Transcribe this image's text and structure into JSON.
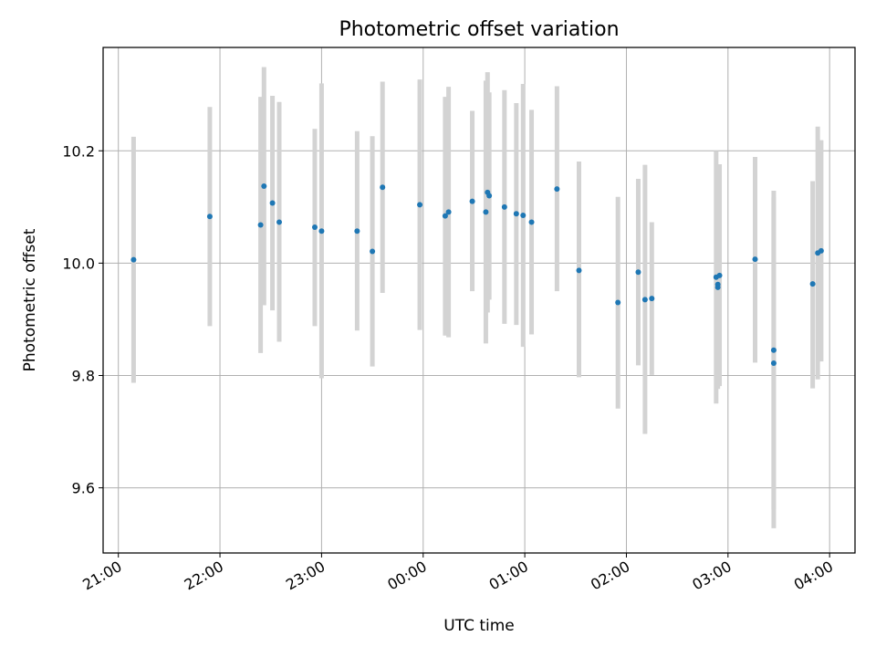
{
  "chart_data": {
    "type": "scatter",
    "title": "Photometric offset variation",
    "xlabel": "UTC time",
    "ylabel": "Photometric offset",
    "grid": true,
    "x_is_time": true,
    "x_start_date": "2000-01-01T20:51",
    "x_end_date": "2000-01-02T04:15",
    "xlim": [
      "20:51",
      "04:15"
    ],
    "ylim": [
      9.484,
      10.384
    ],
    "x_ticks": [
      {
        "label": "21:00",
        "time": "21:00"
      },
      {
        "label": "22:00",
        "time": "22:00"
      },
      {
        "label": "23:00",
        "time": "23:00"
      },
      {
        "label": "00:00",
        "time": "00:00"
      },
      {
        "label": "01:00",
        "time": "01:00"
      },
      {
        "label": "02:00",
        "time": "02:00"
      },
      {
        "label": "03:00",
        "time": "03:00"
      },
      {
        "label": "04:00",
        "time": "04:00"
      }
    ],
    "y_ticks": [
      {
        "label": "9.6",
        "value": 9.6
      },
      {
        "label": "9.8",
        "value": 9.8
      },
      {
        "label": "10.0",
        "value": 10.0
      },
      {
        "label": "10.2",
        "value": 10.2
      }
    ],
    "colors": {
      "marker": "#1f77b4",
      "errorbar": "#d3d3d3",
      "grid": "#b0b0b0"
    },
    "points": [
      {
        "x": "21:09",
        "y": 10.006,
        "lo": 9.787,
        "hi": 10.225
      },
      {
        "x": "21:54",
        "y": 10.083,
        "lo": 9.888,
        "hi": 10.278
      },
      {
        "x": "22:24",
        "y": 10.068,
        "lo": 9.84,
        "hi": 10.296
      },
      {
        "x": "22:26",
        "y": 10.137,
        "lo": 9.925,
        "hi": 10.349
      },
      {
        "x": "22:31",
        "y": 10.107,
        "lo": 9.916,
        "hi": 10.298
      },
      {
        "x": "22:35",
        "y": 10.073,
        "lo": 9.86,
        "hi": 10.287
      },
      {
        "x": "22:56",
        "y": 10.064,
        "lo": 9.888,
        "hi": 10.239
      },
      {
        "x": "23:00",
        "y": 10.057,
        "lo": 9.795,
        "hi": 10.32
      },
      {
        "x": "23:21",
        "y": 10.057,
        "lo": 9.88,
        "hi": 10.235
      },
      {
        "x": "23:30",
        "y": 10.021,
        "lo": 9.816,
        "hi": 10.226
      },
      {
        "x": "23:36",
        "y": 10.135,
        "lo": 9.947,
        "hi": 10.323
      },
      {
        "x": "23:58",
        "y": 10.104,
        "lo": 9.881,
        "hi": 10.327
      },
      {
        "x": "00:13",
        "y": 10.084,
        "lo": 9.871,
        "hi": 10.296
      },
      {
        "x": "00:15",
        "y": 10.091,
        "lo": 9.868,
        "hi": 10.314
      },
      {
        "x": "00:29",
        "y": 10.11,
        "lo": 9.95,
        "hi": 10.271
      },
      {
        "x": "00:37",
        "y": 10.091,
        "lo": 9.857,
        "hi": 10.325
      },
      {
        "x": "00:38",
        "y": 10.126,
        "lo": 9.912,
        "hi": 10.34
      },
      {
        "x": "00:39",
        "y": 10.12,
        "lo": 9.935,
        "hi": 10.304
      },
      {
        "x": "00:48",
        "y": 10.1,
        "lo": 9.892,
        "hi": 10.308
      },
      {
        "x": "00:55",
        "y": 10.088,
        "lo": 9.89,
        "hi": 10.285
      },
      {
        "x": "00:59",
        "y": 10.085,
        "lo": 9.851,
        "hi": 10.319
      },
      {
        "x": "01:04",
        "y": 10.073,
        "lo": 9.873,
        "hi": 10.273
      },
      {
        "x": "01:19",
        "y": 10.132,
        "lo": 9.95,
        "hi": 10.315
      },
      {
        "x": "01:32",
        "y": 9.987,
        "lo": 9.797,
        "hi": 10.181
      },
      {
        "x": "01:55",
        "y": 9.93,
        "lo": 9.741,
        "hi": 10.118
      },
      {
        "x": "02:07",
        "y": 9.984,
        "lo": 9.818,
        "hi": 10.15
      },
      {
        "x": "02:11",
        "y": 9.935,
        "lo": 9.696,
        "hi": 10.175
      },
      {
        "x": "02:15",
        "y": 9.937,
        "lo": 9.801,
        "hi": 10.073
      },
      {
        "x": "02:53",
        "y": 9.975,
        "lo": 9.75,
        "hi": 10.2
      },
      {
        "x": "02:54",
        "y": 9.962,
        "lo": 9.776,
        "hi": 10.143
      },
      {
        "x": "02:54",
        "y": 9.957,
        "lo": 9.8,
        "hi": 10.12
      },
      {
        "x": "02:55",
        "y": 9.978,
        "lo": 9.781,
        "hi": 10.176
      },
      {
        "x": "03:16",
        "y": 10.007,
        "lo": 9.823,
        "hi": 10.189
      },
      {
        "x": "03:27",
        "y": 9.822,
        "lo": 9.528,
        "hi": 10.117
      },
      {
        "x": "03:27",
        "y": 9.845,
        "lo": 9.562,
        "hi": 10.129
      },
      {
        "x": "03:50",
        "y": 9.963,
        "lo": 9.777,
        "hi": 10.146
      },
      {
        "x": "03:53",
        "y": 10.018,
        "lo": 9.793,
        "hi": 10.243
      },
      {
        "x": "03:55",
        "y": 10.022,
        "lo": 9.825,
        "hi": 10.219
      }
    ]
  }
}
